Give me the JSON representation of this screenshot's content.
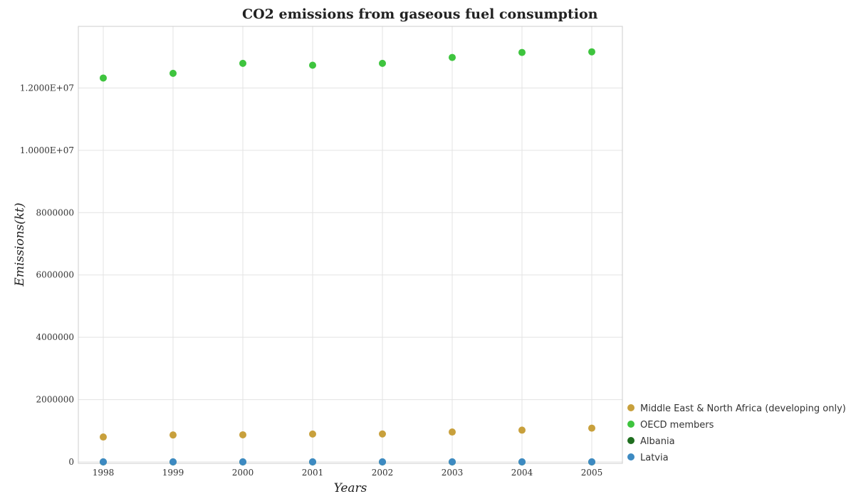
{
  "chart_data": {
    "type": "scatter",
    "title": "CO2 emissions from gaseous fuel consumption",
    "xlabel": "Years",
    "ylabel": "Emissions(kt)",
    "x": [
      1998,
      1999,
      2000,
      2001,
      2002,
      2003,
      2004,
      2005
    ],
    "x_ticks": [
      "1998",
      "1999",
      "2000",
      "2001",
      "2002",
      "2003",
      "2004",
      "2005"
    ],
    "ylim": [
      0,
      14000000
    ],
    "y_ticks": [
      0,
      2000000,
      4000000,
      6000000,
      8000000,
      10000000,
      12000000
    ],
    "y_tick_labels": [
      "0",
      "2000000",
      "4000000",
      "6000000",
      "8000000",
      "1.0000E+07",
      "1.2000E+07"
    ],
    "grid": true,
    "legend_position": "bottom-right",
    "series": [
      {
        "name": "Middle East & North Africa (developing only)",
        "color": "#c8a03c",
        "values": [
          800000,
          865000,
          870000,
          895000,
          898000,
          960000,
          1020000,
          1085000
        ]
      },
      {
        "name": "OECD members",
        "color": "#3ec43e",
        "values": [
          12320000,
          12470000,
          12790000,
          12730000,
          12790000,
          12980000,
          13140000,
          13160000
        ]
      },
      {
        "name": "Albania",
        "color": "#1f6e1f",
        "values": [
          40,
          35,
          30,
          30,
          30,
          35,
          30,
          35
        ]
      },
      {
        "name": "Latvia",
        "color": "#3d8ac2",
        "values": [
          2500,
          2300,
          1900,
          2100,
          2200,
          2400,
          2400,
          2700
        ]
      }
    ]
  }
}
